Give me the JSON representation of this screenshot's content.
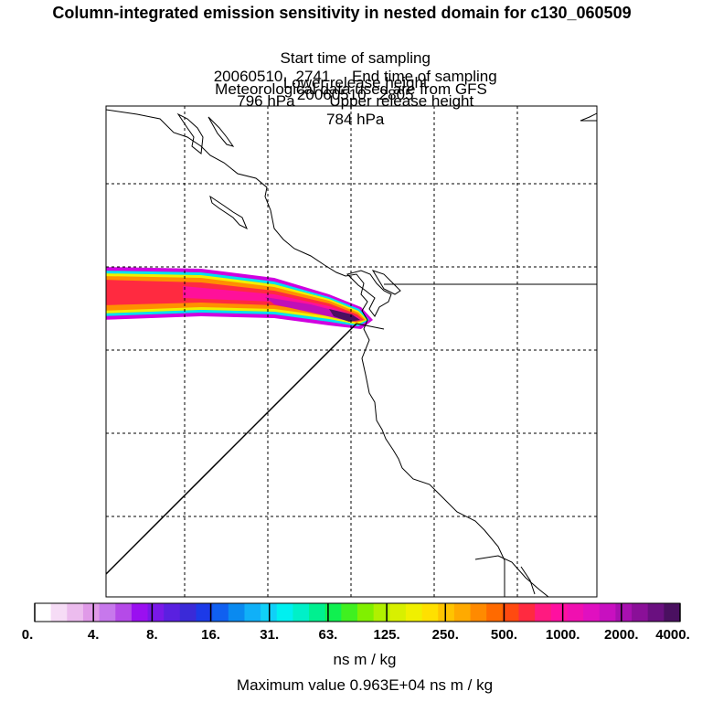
{
  "title": "Column-integrated emission sensitivity in nested domain for c130_060509",
  "start_label": "Start time of sampling",
  "start_value": "20060510.  2741",
  "end_label": "End time of sampling",
  "end_value": "20060510.  2805",
  "lower_label": "Lower release height",
  "lower_value": "796 hPa",
  "upper_label": "Upper release height",
  "upper_value": "784 hPa",
  "met_note": "Meteorological data used are from GFS",
  "colorbar": {
    "ticks": [
      "0.",
      "4.",
      "8.",
      "16.",
      "31.",
      "63.",
      "125.",
      "250.",
      "500.",
      "1000.",
      "2000.",
      "4000."
    ],
    "colors": [
      "#ffffff",
      "#f6dcf6",
      "#ecbcee",
      "#e09ae8",
      "#c778ec",
      "#b54ae8",
      "#9a10f0",
      "#7a18e8",
      "#5a20e0",
      "#3a2ad8",
      "#1c3ae8",
      "#1060f0",
      "#0a8af0",
      "#10b0f8",
      "#10d0f8",
      "#00f0f0",
      "#00f0c8",
      "#00f090",
      "#10f050",
      "#40f020",
      "#80f000",
      "#b0f000",
      "#d8f000",
      "#f0f000",
      "#ffe000",
      "#ffc400",
      "#ffaa00",
      "#ff8a00",
      "#ff6a00",
      "#ff4a10",
      "#ff2a40",
      "#ff1a80",
      "#ff10a0",
      "#f010b0",
      "#e010c0",
      "#c810c0",
      "#a810b0",
      "#8a1098",
      "#6a1080",
      "#4a1060"
    ]
  },
  "units": "ns m / kg",
  "max_label": "Maximum value  0.963E+04 ns m / kg"
}
